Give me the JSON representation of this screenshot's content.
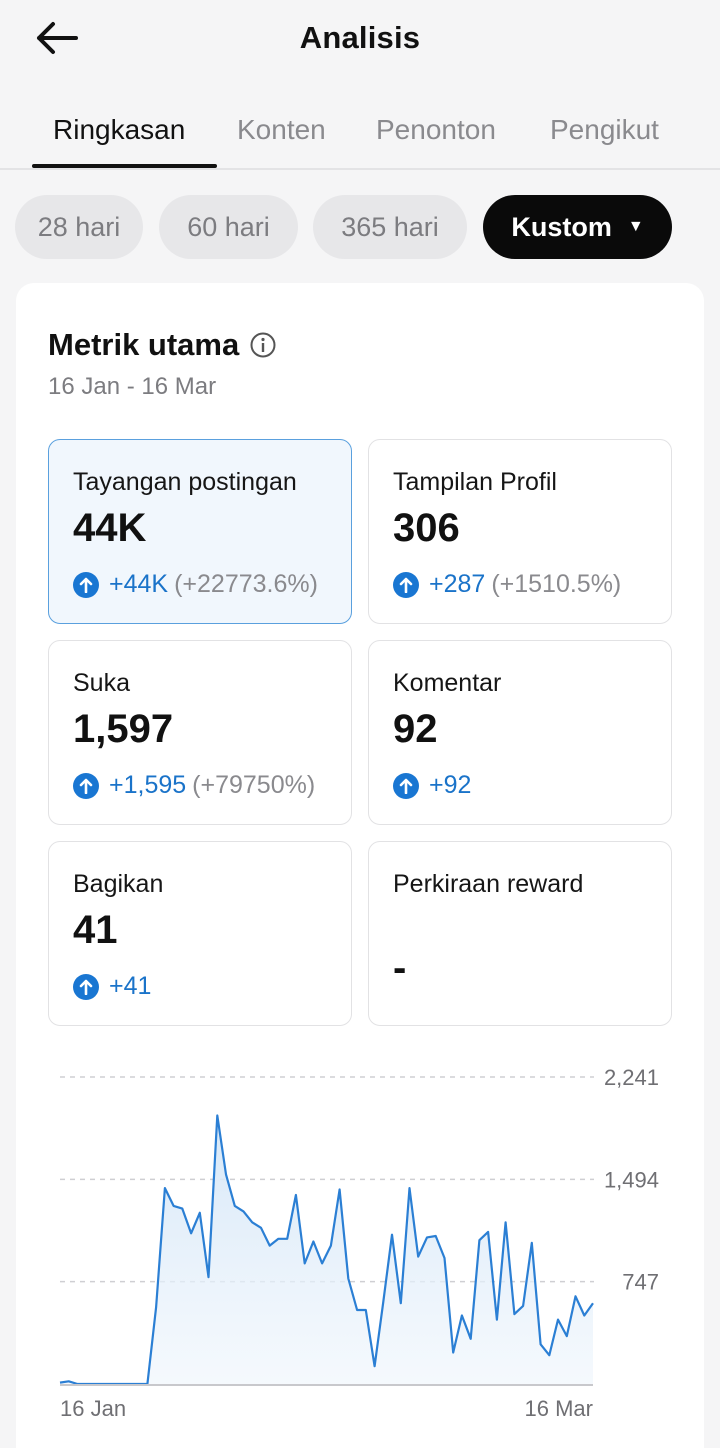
{
  "header": {
    "title": "Analisis",
    "back_icon": "arrow-left-icon"
  },
  "tabs": [
    {
      "label": "Ringkasan",
      "active": true
    },
    {
      "label": "Konten",
      "active": false
    },
    {
      "label": "Penonton",
      "active": false
    },
    {
      "label": "Pengikut",
      "active": false
    }
  ],
  "filters": {
    "chips": [
      "28 hari",
      "60 hari",
      "365 hari"
    ],
    "selected": "Kustom",
    "selected_icon": "caret-down-icon"
  },
  "section": {
    "title": "Metrik utama",
    "info_icon": "info-icon",
    "date_range": "16 Jan - 16 Mar"
  },
  "metrics": [
    {
      "label": "Tayangan postingan",
      "value": "44K",
      "delta": "+44K",
      "pct": "(+22773.6%)",
      "selected": true
    },
    {
      "label": "Tampilan Profil",
      "value": "306",
      "delta": "+287",
      "pct": "(+1510.5%)"
    },
    {
      "label": "Suka",
      "value": "1,597",
      "delta": "+1,595",
      "pct": "(+79750%)"
    },
    {
      "label": "Komentar",
      "value": "92",
      "delta": "+92",
      "pct": ""
    },
    {
      "label": "Bagikan",
      "value": "41",
      "delta": "+41",
      "pct": ""
    },
    {
      "label": "Perkiraan reward",
      "value": "-",
      "delta": "",
      "pct": ""
    }
  ],
  "colors": {
    "accent": "#1976d2",
    "chart_line": "#2b7fd4",
    "chart_fill": "#dbeaf8",
    "selected_card_bg": "#f1f7fd"
  },
  "chart_data": {
    "type": "area",
    "x_tick_labels": [
      "16 Jan",
      "16 Mar"
    ],
    "y_tick_labels": [
      "2,241",
      "1,494",
      "747"
    ],
    "ylim": [
      0,
      2241
    ],
    "grid": true,
    "series": [
      {
        "values": [
          10,
          20,
          0,
          0,
          0,
          0,
          0,
          0,
          0,
          0,
          0,
          560,
          1430,
          1300,
          1280,
          1100,
          1250,
          780,
          1960,
          1530,
          1300,
          1260,
          1180,
          1140,
          1010,
          1060,
          1060,
          1380,
          880,
          1040,
          880,
          1010,
          1420,
          770,
          540,
          540,
          130,
          600,
          1090,
          590,
          1430,
          930,
          1070,
          1080,
          920,
          230,
          500,
          330,
          1050,
          1110,
          470,
          1180,
          510,
          570,
          1030,
          290,
          210,
          470,
          350,
          640,
          500,
          590
        ]
      }
    ]
  }
}
